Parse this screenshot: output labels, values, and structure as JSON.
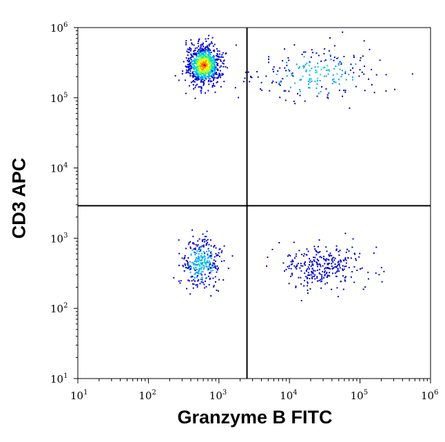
{
  "chart_data": {
    "type": "scatter",
    "title": "",
    "xlabel": "Granzyme B FITC",
    "ylabel": "CD3 APC",
    "x_scale": "log",
    "y_scale": "log",
    "xlim": [
      10,
      1000000
    ],
    "ylim": [
      10,
      1000000
    ],
    "x_ticks": [
      {
        "base": "10",
        "exp": "1"
      },
      {
        "base": "10",
        "exp": "2"
      },
      {
        "base": "10",
        "exp": "3"
      },
      {
        "base": "10",
        "exp": "4"
      },
      {
        "base": "10",
        "exp": "5"
      },
      {
        "base": "10",
        "exp": "6"
      }
    ],
    "y_ticks": [
      {
        "base": "10",
        "exp": "1"
      },
      {
        "base": "10",
        "exp": "2"
      },
      {
        "base": "10",
        "exp": "3"
      },
      {
        "base": "10",
        "exp": "4"
      },
      {
        "base": "10",
        "exp": "5"
      },
      {
        "base": "10",
        "exp": "6"
      }
    ],
    "quadrant_gates": {
      "x": 2500,
      "y": 2900
    },
    "density_colors": [
      "#0000cc",
      "#00a0ff",
      "#00e0c0",
      "#80ff40",
      "#ffff00",
      "#ff8000",
      "#ff0000"
    ],
    "populations": [
      {
        "quadrant": "upper-left",
        "center": [
          600,
          300000
        ],
        "spread": [
          0.12,
          0.14
        ],
        "count": 900,
        "peak_density": "red"
      },
      {
        "quadrant": "upper-right",
        "center": [
          25000,
          230000
        ],
        "spread": [
          0.4,
          0.2
        ],
        "count": 220,
        "peak_density": "cyan"
      },
      {
        "quadrant": "lower-left",
        "center": [
          550,
          450
        ],
        "spread": [
          0.13,
          0.18
        ],
        "count": 320,
        "peak_density": "cyan"
      },
      {
        "quadrant": "lower-right",
        "center": [
          30000,
          400
        ],
        "spread": [
          0.3,
          0.16
        ],
        "count": 300,
        "peak_density": "blue"
      }
    ],
    "grid": false,
    "legend": "none"
  }
}
